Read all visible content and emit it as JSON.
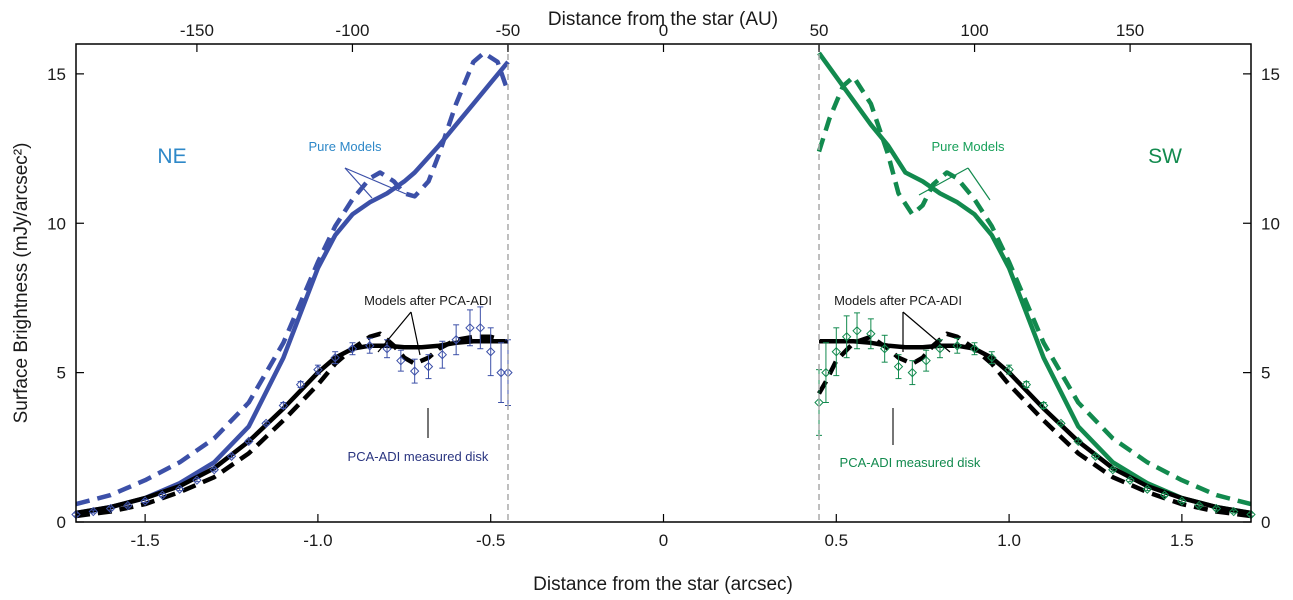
{
  "chart_data": {
    "type": "line",
    "xlabel": "Distance from the star (arcsec)",
    "x2label": "Distance from the star (AU)",
    "ylabel": "Surface Brightness (mJy/arcsec²)",
    "xlim": [
      -1.7,
      1.7
    ],
    "ylim": [
      0,
      16
    ],
    "x_ticks": [
      "-1.5",
      "-1.0",
      "-0.5",
      "0",
      "0.5",
      "1.0",
      "1.5"
    ],
    "x_tick_values": [
      -1.5,
      -1.0,
      -0.5,
      0,
      0.5,
      1.0,
      1.5
    ],
    "x2_ticks": [
      "-150",
      "-100",
      "-50",
      "0",
      "50",
      "100",
      "150"
    ],
    "x2_tick_values": [
      -150,
      -100,
      -50,
      0,
      50,
      100,
      150
    ],
    "au_per_arcsec": 111.1,
    "y_ticks": [
      "0",
      "5",
      "10",
      "15"
    ],
    "y_tick_values": [
      0,
      5,
      10,
      15
    ],
    "grid": false,
    "mask_edges": [
      -0.45,
      0.45
    ],
    "side_labels": [
      "NE",
      "SW"
    ],
    "annotations": [
      {
        "text": "Pure Models",
        "side": "NE"
      },
      {
        "text": "Models after PCA-ADI",
        "side": "NE"
      },
      {
        "text": "PCA-ADI measured disk",
        "side": "NE"
      },
      {
        "text": "Pure Models",
        "side": "SW"
      },
      {
        "text": "Models after PCA-ADI",
        "side": "SW"
      },
      {
        "text": "PCA-ADI measured disk",
        "side": "SW"
      }
    ],
    "colors": {
      "ne": "#3c50a8",
      "sw": "#128a4e",
      "pca_model": "#000000",
      "mask": "#aaaaaa"
    },
    "series": [
      {
        "side": "NE",
        "style": "solid",
        "color": "#3c50a8",
        "x": [
          -1.7,
          -1.6,
          -1.5,
          -1.4,
          -1.3,
          -1.2,
          -1.1,
          -1.0,
          -0.95,
          -0.9,
          -0.85,
          -0.8,
          -0.75,
          -0.72,
          -0.65,
          -0.6,
          -0.55,
          -0.5,
          -0.45
        ],
        "y": [
          0.3,
          0.5,
          0.8,
          1.3,
          2.0,
          3.2,
          5.5,
          8.5,
          9.6,
          10.3,
          10.7,
          11.0,
          11.4,
          11.7,
          12.6,
          13.3,
          14.0,
          14.7,
          15.4
        ]
      },
      {
        "side": "NE",
        "style": "dashed",
        "color": "#3c50a8",
        "x": [
          -1.7,
          -1.6,
          -1.5,
          -1.4,
          -1.3,
          -1.2,
          -1.1,
          -1.0,
          -0.95,
          -0.9,
          -0.85,
          -0.82,
          -0.78,
          -0.75,
          -0.72,
          -0.68,
          -0.65,
          -0.6,
          -0.55,
          -0.52,
          -0.48,
          -0.45
        ],
        "y": [
          0.6,
          0.9,
          1.4,
          2.0,
          2.8,
          4.0,
          6.0,
          8.7,
          9.9,
          10.8,
          11.5,
          11.7,
          11.4,
          11.0,
          10.9,
          11.4,
          12.3,
          14.0,
          15.4,
          15.7,
          15.4,
          14.4
        ]
      },
      {
        "side": "NE",
        "style": "solid",
        "color": "#000000",
        "x": [
          -1.7,
          -1.6,
          -1.5,
          -1.4,
          -1.3,
          -1.2,
          -1.1,
          -1.0,
          -0.95,
          -0.9,
          -0.85,
          -0.8,
          -0.75,
          -0.7,
          -0.65,
          -0.6,
          -0.55,
          -0.5,
          -0.45
        ],
        "y": [
          0.3,
          0.5,
          0.8,
          1.2,
          1.8,
          2.7,
          3.8,
          5.0,
          5.5,
          5.8,
          5.9,
          5.9,
          5.85,
          5.85,
          5.9,
          6.0,
          6.05,
          6.05,
          6.05
        ]
      },
      {
        "side": "NE",
        "style": "dashed",
        "color": "#000000",
        "x": [
          -1.7,
          -1.6,
          -1.5,
          -1.4,
          -1.3,
          -1.2,
          -1.1,
          -1.0,
          -0.95,
          -0.9,
          -0.85,
          -0.82,
          -0.78,
          -0.75,
          -0.72,
          -0.68,
          -0.65,
          -0.6,
          -0.55,
          -0.5,
          -0.47
        ],
        "y": [
          0.2,
          0.35,
          0.6,
          1.0,
          1.5,
          2.3,
          3.4,
          4.6,
          5.3,
          5.8,
          6.2,
          6.3,
          5.9,
          5.5,
          5.3,
          5.5,
          5.8,
          6.1,
          6.2,
          6.2,
          6.1
        ]
      },
      {
        "side": "NE",
        "style": "errorbars",
        "color": "#3c50a8",
        "x": [
          -1.7,
          -1.65,
          -1.6,
          -1.55,
          -1.5,
          -1.45,
          -1.4,
          -1.35,
          -1.3,
          -1.25,
          -1.2,
          -1.15,
          -1.1,
          -1.05,
          -1.0,
          -0.95,
          -0.9,
          -0.85,
          -0.8,
          -0.76,
          -0.72,
          -0.68,
          -0.64,
          -0.6,
          -0.56,
          -0.53,
          -0.5,
          -0.47,
          -0.45
        ],
        "y": [
          0.25,
          0.35,
          0.45,
          0.55,
          0.7,
          0.9,
          1.1,
          1.4,
          1.75,
          2.2,
          2.7,
          3.3,
          3.9,
          4.6,
          5.1,
          5.5,
          5.8,
          5.9,
          5.8,
          5.4,
          5.05,
          5.2,
          5.6,
          6.1,
          6.5,
          6.5,
          5.7,
          5.0,
          5.0
        ],
        "err": [
          0.05,
          0.05,
          0.05,
          0.05,
          0.05,
          0.05,
          0.05,
          0.05,
          0.05,
          0.05,
          0.05,
          0.05,
          0.1,
          0.1,
          0.15,
          0.2,
          0.2,
          0.25,
          0.3,
          0.35,
          0.4,
          0.4,
          0.45,
          0.5,
          0.6,
          0.7,
          0.8,
          1.0,
          1.1
        ]
      },
      {
        "side": "SW",
        "style": "solid",
        "color": "#128a4e",
        "x": [
          0.45,
          0.5,
          0.55,
          0.6,
          0.65,
          0.7,
          0.75,
          0.8,
          0.85,
          0.9,
          0.95,
          1.0,
          1.1,
          1.2,
          1.3,
          1.4,
          1.5,
          1.6,
          1.7
        ],
        "y": [
          15.7,
          14.9,
          14.1,
          13.3,
          12.6,
          11.7,
          11.4,
          11.0,
          10.7,
          10.3,
          9.6,
          8.5,
          5.5,
          3.2,
          2.0,
          1.3,
          0.8,
          0.5,
          0.3
        ]
      },
      {
        "side": "SW",
        "style": "dashed",
        "color": "#128a4e",
        "x": [
          0.45,
          0.48,
          0.52,
          0.55,
          0.6,
          0.65,
          0.68,
          0.72,
          0.75,
          0.78,
          0.82,
          0.85,
          0.9,
          0.95,
          1.0,
          1.1,
          1.2,
          1.3,
          1.4,
          1.5,
          1.6,
          1.7
        ],
        "y": [
          12.4,
          13.5,
          14.6,
          14.9,
          14.0,
          12.3,
          11.0,
          10.3,
          10.6,
          11.3,
          11.7,
          11.5,
          10.8,
          9.9,
          8.7,
          6.0,
          4.0,
          2.8,
          2.0,
          1.4,
          0.9,
          0.6
        ]
      },
      {
        "side": "SW",
        "style": "solid",
        "color": "#000000",
        "x": [
          0.45,
          0.5,
          0.55,
          0.6,
          0.65,
          0.7,
          0.75,
          0.8,
          0.85,
          0.9,
          0.95,
          1.0,
          1.1,
          1.2,
          1.3,
          1.4,
          1.5,
          1.6,
          1.7
        ],
        "y": [
          6.05,
          6.05,
          6.05,
          6.0,
          5.9,
          5.85,
          5.85,
          5.9,
          5.9,
          5.8,
          5.5,
          5.0,
          3.8,
          2.7,
          1.8,
          1.2,
          0.8,
          0.5,
          0.3
        ]
      },
      {
        "side": "SW",
        "style": "dashed",
        "color": "#000000",
        "x": [
          0.45,
          0.47,
          0.5,
          0.55,
          0.6,
          0.65,
          0.68,
          0.72,
          0.75,
          0.78,
          0.82,
          0.85,
          0.9,
          0.95,
          1.0,
          1.1,
          1.2,
          1.3,
          1.4,
          1.5,
          1.6,
          1.7
        ],
        "y": [
          4.3,
          4.7,
          5.4,
          6.0,
          6.2,
          5.8,
          5.5,
          5.3,
          5.5,
          5.9,
          6.3,
          6.2,
          5.8,
          5.3,
          4.6,
          3.4,
          2.3,
          1.5,
          1.0,
          0.6,
          0.35,
          0.2
        ]
      },
      {
        "side": "SW",
        "style": "errorbars",
        "color": "#128a4e",
        "x": [
          0.45,
          0.47,
          0.5,
          0.53,
          0.56,
          0.6,
          0.64,
          0.68,
          0.72,
          0.76,
          0.8,
          0.85,
          0.9,
          0.95,
          1.0,
          1.05,
          1.1,
          1.15,
          1.2,
          1.25,
          1.3,
          1.35,
          1.4,
          1.45,
          1.5,
          1.55,
          1.6,
          1.65,
          1.7
        ],
        "y": [
          4.0,
          5.0,
          5.7,
          6.2,
          6.4,
          6.3,
          5.8,
          5.2,
          5.0,
          5.4,
          5.8,
          5.9,
          5.8,
          5.5,
          5.1,
          4.6,
          3.9,
          3.3,
          2.7,
          2.2,
          1.75,
          1.4,
          1.1,
          0.9,
          0.7,
          0.55,
          0.45,
          0.35,
          0.25
        ],
        "err": [
          1.1,
          1.0,
          0.8,
          0.7,
          0.6,
          0.5,
          0.45,
          0.4,
          0.4,
          0.35,
          0.3,
          0.25,
          0.2,
          0.2,
          0.15,
          0.1,
          0.1,
          0.05,
          0.05,
          0.05,
          0.05,
          0.05,
          0.05,
          0.05,
          0.05,
          0.05,
          0.05,
          0.05,
          0.05
        ]
      }
    ]
  }
}
